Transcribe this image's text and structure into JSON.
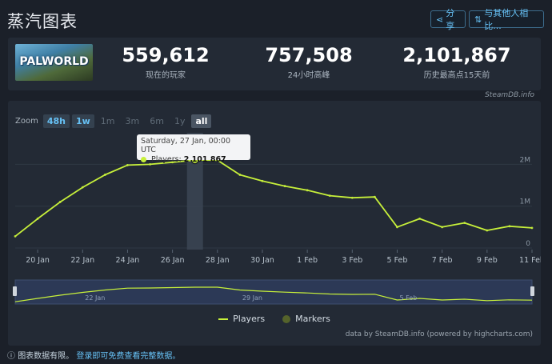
{
  "header": {
    "title": "蒸汽图表",
    "share_label": "分享",
    "compare_label": "与其他人相比..."
  },
  "game": {
    "logo_text": "PALWORLD"
  },
  "stats": [
    {
      "value": "559,612",
      "label": "现在的玩家"
    },
    {
      "value": "757,508",
      "label": "24小时高峰"
    },
    {
      "value": "2,101,867",
      "label": "历史最高点15天前"
    }
  ],
  "chart": {
    "credit_top": "SteamDB.info",
    "zoom_label": "Zoom",
    "zoom_buttons": [
      "48h",
      "1w",
      "1m",
      "3m",
      "6m",
      "1y",
      "all"
    ],
    "tooltip": {
      "date": "Saturday, 27 Jan, 00:00 UTC",
      "series": "Players:",
      "value": "2 101 867"
    },
    "legend": {
      "players": "Players",
      "markers": "Markers"
    },
    "credit_bottom": "data by SteamDB.info (powered by highcharts.com)",
    "navigator_labels": [
      "22 Jan",
      "29 Jan",
      "5 Feb"
    ]
  },
  "chart_data": {
    "type": "line",
    "series": [
      {
        "name": "Players",
        "x": [
          "19 Jan",
          "20 Jan",
          "21 Jan",
          "22 Jan",
          "23 Jan",
          "24 Jan",
          "25 Jan",
          "26 Jan",
          "27 Jan",
          "28 Jan",
          "29 Jan",
          "30 Jan",
          "31 Jan",
          "1 Feb",
          "2 Feb",
          "3 Feb",
          "4 Feb",
          "5 Feb",
          "6 Feb",
          "7 Feb",
          "8 Feb",
          "9 Feb",
          "10 Feb",
          "11 Feb"
        ],
        "values": [
          280000,
          700000,
          1100000,
          1450000,
          1750000,
          1980000,
          2000000,
          2050000,
          2101867,
          2100000,
          1750000,
          1600000,
          1480000,
          1380000,
          1250000,
          1200000,
          1220000,
          500000,
          700000,
          500000,
          600000,
          420000,
          520000,
          480000
        ]
      }
    ],
    "y_ticks": [
      "0",
      "1M",
      "2M"
    ],
    "x_ticks": [
      "20 Jan",
      "22 Jan",
      "24 Jan",
      "26 Jan",
      "28 Jan",
      "30 Jan",
      "1 Feb",
      "3 Feb",
      "5 Feb",
      "7 Feb",
      "9 Feb",
      "11 Feb"
    ],
    "ylim": [
      0,
      2600000
    ],
    "grid": true,
    "legend_position": "bottom-center",
    "colors": {
      "players": "#c7f03a",
      "markers": "#55632b",
      "grid": "#2f3845"
    }
  },
  "footer": {
    "warning": "图表数据有限。",
    "link": "登录即可免费查看完整数据。"
  }
}
